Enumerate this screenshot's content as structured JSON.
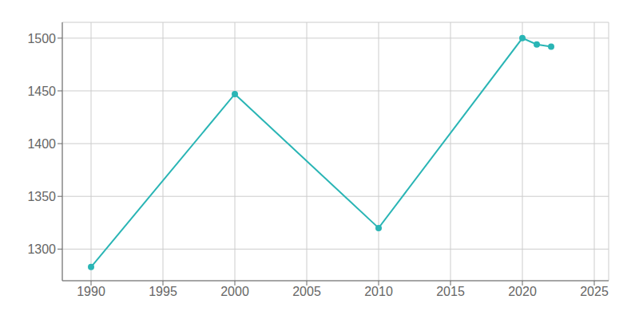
{
  "chart_data": {
    "type": "line",
    "x": [
      1990,
      2000,
      2010,
      2020,
      2021,
      2022
    ],
    "values": [
      1283,
      1447,
      1320,
      1500,
      1494,
      1492
    ],
    "color": "#2ab5b5",
    "marker": "circle",
    "xlim": [
      1988,
      2026
    ],
    "xticks": [
      1990,
      1995,
      2000,
      2005,
      2010,
      2015,
      2020,
      2025
    ],
    "ylim": [
      1270,
      1515
    ],
    "yticks": [
      1300,
      1350,
      1400,
      1450,
      1500
    ],
    "grid": true
  }
}
